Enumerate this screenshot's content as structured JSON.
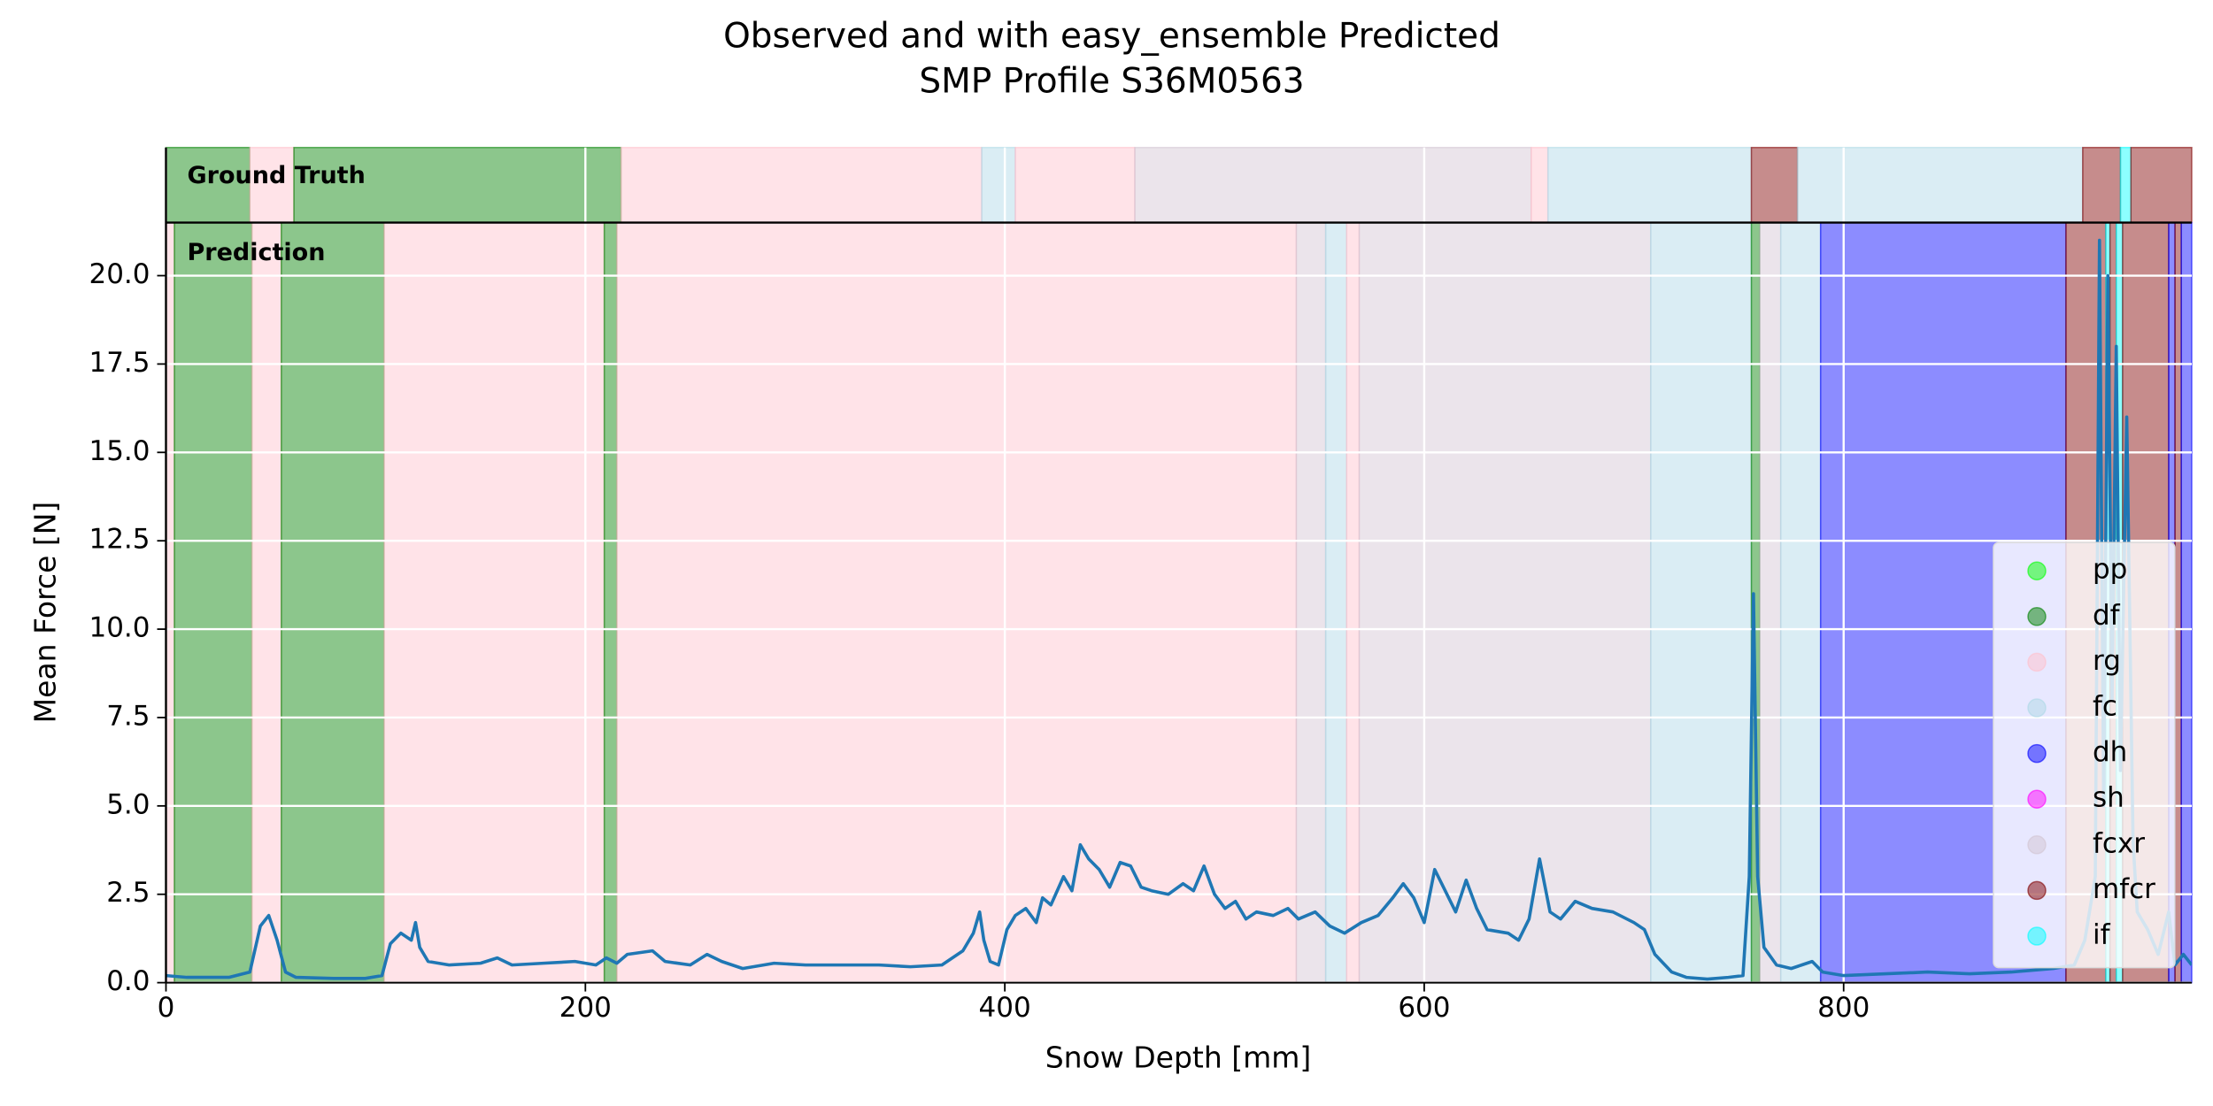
{
  "chart_data": {
    "type": "line",
    "title": "Observed and with easy_ensemble Predicted",
    "subtitle": "SMP Profile S36M0563",
    "x_label": "Snow Depth [mm]",
    "y_label": "Mean Force [N]",
    "xlim": [
      0,
      966
    ],
    "ylim": [
      0,
      21.5
    ],
    "xticks": [
      0,
      200,
      400,
      600,
      800
    ],
    "yticks": [
      {
        "value": 0,
        "label": "0.0"
      },
      {
        "value": 2.5,
        "label": "2.5"
      },
      {
        "value": 5,
        "label": "5.0"
      },
      {
        "value": 7.5,
        "label": "7.5"
      },
      {
        "value": 10,
        "label": "10.0"
      },
      {
        "value": 12.5,
        "label": "12.5"
      },
      {
        "value": 15,
        "label": "15.0"
      },
      {
        "value": 17.5,
        "label": "17.5"
      },
      {
        "value": 20,
        "label": "20.0"
      }
    ],
    "grid": true,
    "legend": "lower right",
    "classes": [
      {
        "name": "pp",
        "color": "#00ff00"
      },
      {
        "name": "df",
        "color": "#008000"
      },
      {
        "name": "rg",
        "color": "#ffc0cb"
      },
      {
        "name": "fc",
        "color": "#add8e6"
      },
      {
        "name": "dh",
        "color": "#0000ff"
      },
      {
        "name": "sh",
        "color": "#ff00ff"
      },
      {
        "name": "fcxr",
        "color": "#d2c4d2"
      },
      {
        "name": "mfcr",
        "color": "#800000"
      },
      {
        "name": "if",
        "color": "#00ffff"
      }
    ],
    "panels": [
      {
        "label": "Ground Truth",
        "segments": [
          {
            "start": 0,
            "end": 40,
            "class": "df"
          },
          {
            "start": 40,
            "end": 61,
            "class": "rg"
          },
          {
            "start": 61,
            "end": 217,
            "class": "df"
          },
          {
            "start": 217,
            "end": 389,
            "class": "rg"
          },
          {
            "start": 389,
            "end": 405,
            "class": "fc"
          },
          {
            "start": 405,
            "end": 462,
            "class": "rg"
          },
          {
            "start": 462,
            "end": 651,
            "class": "fcxr"
          },
          {
            "start": 651,
            "end": 659,
            "class": "rg"
          },
          {
            "start": 659,
            "end": 756,
            "class": "fc"
          },
          {
            "start": 756,
            "end": 778,
            "class": "mfcr"
          },
          {
            "start": 778,
            "end": 914,
            "class": "fc"
          },
          {
            "start": 914,
            "end": 932,
            "class": "mfcr"
          },
          {
            "start": 932,
            "end": 937,
            "class": "if"
          },
          {
            "start": 937,
            "end": 966,
            "class": "mfcr"
          }
        ]
      },
      {
        "label": "Prediction",
        "segments": [
          {
            "start": 0,
            "end": 4,
            "class": "rg"
          },
          {
            "start": 4,
            "end": 41,
            "class": "df"
          },
          {
            "start": 41,
            "end": 55,
            "class": "rg"
          },
          {
            "start": 55,
            "end": 104,
            "class": "df"
          },
          {
            "start": 104,
            "end": 209,
            "class": "rg"
          },
          {
            "start": 209,
            "end": 215,
            "class": "df"
          },
          {
            "start": 215,
            "end": 539,
            "class": "rg"
          },
          {
            "start": 539,
            "end": 553,
            "class": "fcxr"
          },
          {
            "start": 553,
            "end": 563,
            "class": "fc"
          },
          {
            "start": 563,
            "end": 569,
            "class": "rg"
          },
          {
            "start": 569,
            "end": 708,
            "class": "fcxr"
          },
          {
            "start": 708,
            "end": 756,
            "class": "fc"
          },
          {
            "start": 756,
            "end": 760,
            "class": "df"
          },
          {
            "start": 760,
            "end": 770,
            "class": "fcxr"
          },
          {
            "start": 770,
            "end": 789,
            "class": "fc"
          },
          {
            "start": 789,
            "end": 906,
            "class": "dh"
          },
          {
            "start": 906,
            "end": 925,
            "class": "mfcr"
          },
          {
            "start": 925,
            "end": 927,
            "class": "if"
          },
          {
            "start": 927,
            "end": 930,
            "class": "mfcr"
          },
          {
            "start": 930,
            "end": 933,
            "class": "if"
          },
          {
            "start": 933,
            "end": 955,
            "class": "mfcr"
          },
          {
            "start": 955,
            "end": 958,
            "class": "dh"
          },
          {
            "start": 958,
            "end": 961,
            "class": "mfcr"
          },
          {
            "start": 961,
            "end": 966,
            "class": "dh"
          }
        ]
      }
    ],
    "series": [
      {
        "color": "#1f77b4",
        "x": [
          0,
          10,
          20,
          30,
          40,
          45,
          49,
          53,
          57,
          62,
          80,
          95,
          103,
          107,
          112,
          117,
          119,
          121,
          125,
          135,
          150,
          158,
          165,
          180,
          195,
          205,
          210,
          215,
          220,
          232,
          238,
          250,
          258,
          265,
          275,
          290,
          305,
          320,
          340,
          355,
          370,
          380,
          385,
          388,
          390,
          393,
          397,
          401,
          405,
          410,
          415,
          418,
          422,
          428,
          432,
          436,
          440,
          445,
          450,
          455,
          460,
          465,
          470,
          478,
          485,
          490,
          495,
          500,
          505,
          510,
          515,
          520,
          528,
          535,
          540,
          548,
          555,
          562,
          570,
          578,
          585,
          590,
          595,
          600,
          605,
          610,
          615,
          620,
          625,
          630,
          640,
          645,
          650,
          655,
          660,
          665,
          672,
          680,
          690,
          700,
          705,
          710,
          718,
          725,
          735,
          745,
          752,
          755,
          757,
          759,
          762,
          768,
          775,
          780,
          785,
          790,
          800,
          820,
          840,
          860,
          880,
          900,
          910,
          915,
          920,
          922,
          924,
          926,
          928,
          930,
          932,
          935,
          938,
          940,
          945,
          950,
          955,
          958,
          962,
          966
        ],
        "values": [
          0.2,
          0.15,
          0.15,
          0.15,
          0.3,
          1.6,
          1.9,
          1.2,
          0.3,
          0.15,
          0.12,
          0.12,
          0.2,
          1.1,
          1.4,
          1.2,
          1.7,
          1.0,
          0.6,
          0.5,
          0.55,
          0.7,
          0.5,
          0.55,
          0.6,
          0.5,
          0.7,
          0.55,
          0.8,
          0.9,
          0.6,
          0.5,
          0.8,
          0.6,
          0.4,
          0.55,
          0.5,
          0.5,
          0.5,
          0.45,
          0.5,
          0.9,
          1.4,
          2.0,
          1.2,
          0.6,
          0.5,
          1.5,
          1.9,
          2.1,
          1.7,
          2.4,
          2.2,
          3.0,
          2.6,
          3.9,
          3.5,
          3.2,
          2.7,
          3.4,
          3.3,
          2.7,
          2.6,
          2.5,
          2.8,
          2.6,
          3.3,
          2.5,
          2.1,
          2.3,
          1.8,
          2.0,
          1.9,
          2.1,
          1.8,
          2.0,
          1.6,
          1.4,
          1.7,
          1.9,
          2.4,
          2.8,
          2.4,
          1.7,
          3.2,
          2.6,
          2.0,
          2.9,
          2.1,
          1.5,
          1.4,
          1.2,
          1.8,
          3.5,
          2.0,
          1.8,
          2.3,
          2.1,
          2.0,
          1.7,
          1.5,
          0.8,
          0.3,
          0.15,
          0.1,
          0.15,
          0.2,
          3,
          11.0,
          3,
          1.0,
          0.5,
          0.4,
          0.5,
          0.6,
          0.3,
          0.2,
          0.25,
          0.3,
          0.25,
          0.3,
          0.4,
          0.5,
          1.2,
          3,
          21,
          5,
          20,
          8,
          18,
          6,
          16,
          4,
          2,
          1.5,
          0.8,
          2,
          0.5,
          0.8,
          0.5
        ]
      }
    ]
  }
}
